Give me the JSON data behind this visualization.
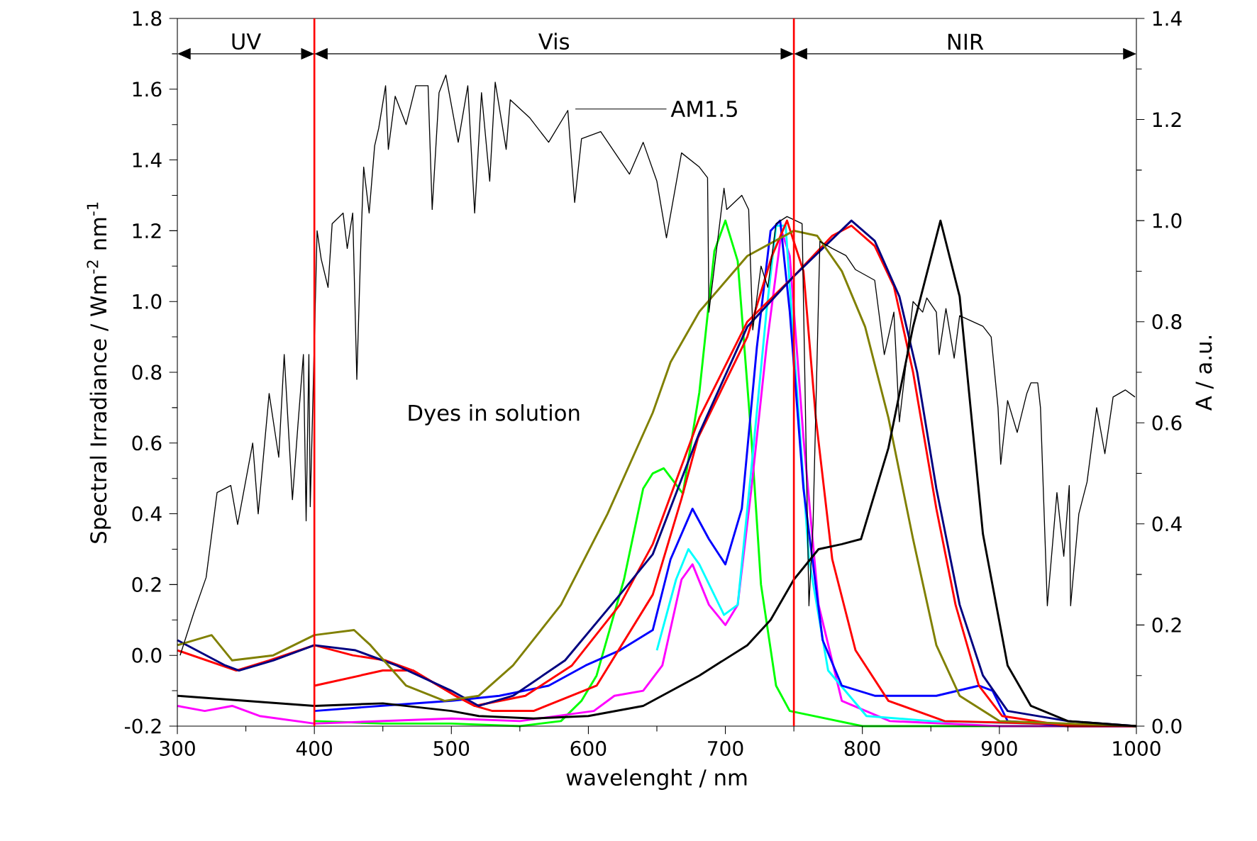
{
  "chart_data": {
    "type": "line",
    "xlabel": "wavelenght / nm",
    "ylabel": "Spectral Irradiance / Wm$^{-2}$ nm$^{-1}$",
    "y2label": "A / a.u.",
    "xlim": [
      300,
      1000
    ],
    "xticks": [
      300,
      400,
      500,
      600,
      700,
      800,
      900,
      1000
    ],
    "ylim": [
      -0.2,
      1.8
    ],
    "yticks": [
      -0.2,
      {
        "value": 0,
        "label": "0.0"
      },
      0.2,
      0.4,
      0.6,
      0.8,
      {
        "value": 1,
        "label": "1.0"
      },
      1.2,
      1.4,
      1.6,
      1.8
    ],
    "y2lim": [
      0,
      1.4
    ],
    "y2ticks": [
      {
        "value": 0,
        "label": "0.0"
      },
      0.2,
      0.4,
      0.6,
      0.8,
      {
        "value": 1,
        "label": "1.0"
      },
      1.2,
      1.4
    ],
    "annotations": [
      "UV",
      "Vis",
      "NIR",
      "Dyes in solution"
    ],
    "ref_lines": [
      {
        "axis": "x",
        "value": 400,
        "color": "#ff0000"
      },
      {
        "axis": "x",
        "value": 750,
        "color": "#ff0000"
      }
    ],
    "series": [
      {
        "name": "AM1.5",
        "color": "#000000",
        "x": [
          302,
          312,
          321,
          329,
          339,
          344,
          355,
          359,
          367,
          374,
          378,
          384,
          388,
          392,
          394,
          396,
          397,
          402,
          405,
          410,
          413,
          421,
          424,
          428,
          431,
          434,
          436,
          440,
          444,
          447,
          452,
          454,
          459,
          467,
          474,
          483,
          486,
          491,
          496,
          505,
          512,
          517,
          522,
          528,
          532,
          540,
          543,
          557,
          571,
          585,
          590,
          595,
          609,
          630,
          640,
          650,
          657,
          668,
          681,
          687,
          688,
          699,
          701,
          712,
          717,
          720,
          726,
          731,
          737,
          745,
          756,
          761,
          764,
          769,
          778,
          788,
          795,
          809,
          816,
          823,
          827,
          837,
          844,
          847,
          854,
          856,
          861,
          867,
          871,
          888,
          894,
          899,
          901,
          906,
          913,
          920,
          923,
          928,
          930,
          935,
          942,
          947,
          951,
          952,
          958,
          964,
          971,
          977,
          983,
          992,
          999
        ],
        "values": [
          0.0,
          0.12,
          0.22,
          0.46,
          0.48,
          0.37,
          0.6,
          0.4,
          0.74,
          0.56,
          0.85,
          0.44,
          0.65,
          0.85,
          0.38,
          0.85,
          0.42,
          1.2,
          1.12,
          1.04,
          1.22,
          1.25,
          1.15,
          1.25,
          0.78,
          1.17,
          1.38,
          1.25,
          1.44,
          1.49,
          1.61,
          1.43,
          1.58,
          1.5,
          1.61,
          1.61,
          1.26,
          1.59,
          1.64,
          1.45,
          1.61,
          1.25,
          1.59,
          1.34,
          1.62,
          1.43,
          1.57,
          1.52,
          1.45,
          1.54,
          1.28,
          1.46,
          1.48,
          1.36,
          1.45,
          1.34,
          1.18,
          1.42,
          1.38,
          1.35,
          0.97,
          1.32,
          1.26,
          1.3,
          1.26,
          0.92,
          1.1,
          1.04,
          1.22,
          1.24,
          1.22,
          0.14,
          0.37,
          1.17,
          1.15,
          1.13,
          1.09,
          1.06,
          0.85,
          0.97,
          0.66,
          1.0,
          0.97,
          1.01,
          0.97,
          0.85,
          0.98,
          0.84,
          0.96,
          0.93,
          0.9,
          0.7,
          0.54,
          0.72,
          0.63,
          0.74,
          0.77,
          0.77,
          0.7,
          0.14,
          0.46,
          0.28,
          0.48,
          0.14,
          0.4,
          0.49,
          0.7,
          0.57,
          0.73,
          0.75,
          0.73
        ]
      },
      {
        "color": "#00ff00",
        "axis": "y2",
        "x": [
          400,
          450,
          500,
          550,
          580,
          595,
          606,
          626,
          640,
          647,
          655,
          669,
          681,
          692,
          700,
          709,
          719,
          726,
          737,
          747,
          800,
          900,
          1000
        ],
        "values": [
          0.01,
          0.005,
          0.005,
          0.0,
          0.01,
          0.05,
          0.1,
          0.29,
          0.47,
          0.5,
          0.51,
          0.46,
          0.66,
          0.94,
          1.0,
          0.92,
          0.57,
          0.28,
          0.08,
          0.03,
          0.0,
          0.0,
          0.0
        ]
      },
      {
        "color": "#ff00ff",
        "axis": "y2",
        "x": [
          300,
          320,
          340,
          360,
          400,
          450,
          500,
          550,
          604,
          619,
          640,
          654,
          668,
          676,
          688,
          700,
          709,
          719,
          730,
          741,
          747,
          757,
          768,
          785,
          820,
          900,
          1000
        ],
        "values": [
          0.04,
          0.03,
          0.04,
          0.02,
          0.005,
          0.01,
          0.015,
          0.01,
          0.03,
          0.06,
          0.07,
          0.12,
          0.29,
          0.32,
          0.24,
          0.2,
          0.24,
          0.47,
          0.75,
          0.98,
          0.93,
          0.57,
          0.24,
          0.05,
          0.01,
          0.0,
          0.0
        ]
      },
      {
        "color": "#00ffff",
        "axis": "y2",
        "x": [
          650,
          664,
          673,
          681,
          699,
          709,
          719,
          730,
          737,
          744,
          750,
          761,
          775,
          803,
          850,
          1000
        ],
        "values": [
          0.15,
          0.29,
          0.35,
          0.32,
          0.22,
          0.24,
          0.51,
          0.82,
          0.99,
          0.99,
          0.75,
          0.33,
          0.11,
          0.02,
          0.01,
          0.0
        ]
      },
      {
        "color": "#0000ff",
        "axis": "y2",
        "x": [
          400,
          448,
          500,
          535,
          571,
          598,
          623,
          647,
          660,
          676,
          688,
          700,
          712,
          723,
          733,
          740,
          747,
          757,
          771,
          785,
          809,
          854,
          885,
          895,
          906,
          950,
          1000
        ],
        "values": [
          0.03,
          0.04,
          0.05,
          0.06,
          0.08,
          0.12,
          0.15,
          0.19,
          0.33,
          0.43,
          0.37,
          0.32,
          0.43,
          0.75,
          0.98,
          1.0,
          0.82,
          0.47,
          0.17,
          0.08,
          0.06,
          0.06,
          0.08,
          0.07,
          0.01,
          0.0,
          0.0
        ]
      },
      {
        "color": "#ff0000",
        "axis": "y2",
        "x": [
          400,
          450,
          472,
          503,
          517,
          530,
          560,
          606,
          647,
          668,
          680,
          716,
          734,
          745,
          757,
          766,
          778,
          795,
          819,
          860,
          1000
        ],
        "values": [
          0.08,
          0.11,
          0.11,
          0.06,
          0.04,
          0.03,
          0.03,
          0.08,
          0.26,
          0.45,
          0.57,
          0.77,
          0.93,
          1.0,
          0.9,
          0.61,
          0.33,
          0.15,
          0.05,
          0.01,
          0.0
        ]
      },
      {
        "color": "#ff0000",
        "axis": "y2",
        "x": [
          300,
          343,
          367,
          400,
          428,
          452,
          472,
          503,
          517,
          554,
          588,
          623,
          647,
          681,
          716,
          750,
          778,
          792,
          809,
          823,
          837,
          854,
          868,
          885,
          902,
          950,
          1000
        ],
        "values": [
          0.15,
          0.11,
          0.13,
          0.16,
          0.14,
          0.13,
          0.11,
          0.06,
          0.04,
          0.06,
          0.12,
          0.24,
          0.36,
          0.61,
          0.8,
          0.89,
          0.97,
          0.99,
          0.95,
          0.87,
          0.7,
          0.43,
          0.24,
          0.08,
          0.02,
          0.0,
          0.0
        ]
      },
      {
        "color": "#000080",
        "axis": "y2",
        "x": [
          300,
          335,
          345,
          370,
          400,
          430,
          460,
          500,
          520,
          545,
          583,
          623,
          647,
          671,
          681,
          716,
          750,
          792,
          809,
          827,
          840,
          854,
          871,
          888,
          906,
          950,
          1000
        ],
        "values": [
          0.17,
          0.12,
          0.11,
          0.13,
          0.16,
          0.15,
          0.12,
          0.07,
          0.04,
          0.06,
          0.13,
          0.26,
          0.34,
          0.51,
          0.58,
          0.79,
          0.89,
          1.0,
          0.96,
          0.85,
          0.7,
          0.47,
          0.24,
          0.1,
          0.03,
          0.01,
          0.0
        ]
      },
      {
        "color": "#808000",
        "axis": "y2",
        "x": [
          300,
          325,
          340,
          370,
          400,
          429,
          441,
          467,
          495,
          520,
          545,
          580,
          614,
          647,
          660,
          681,
          716,
          750,
          767,
          785,
          802,
          819,
          837,
          854,
          871,
          900,
          1000
        ],
        "values": [
          0.16,
          0.18,
          0.13,
          0.14,
          0.18,
          0.19,
          0.16,
          0.08,
          0.05,
          0.06,
          0.12,
          0.24,
          0.42,
          0.62,
          0.72,
          0.82,
          0.93,
          0.98,
          0.97,
          0.9,
          0.79,
          0.61,
          0.37,
          0.16,
          0.06,
          0.01,
          0.0
        ]
      },
      {
        "color": "#000000",
        "axis": "y2",
        "x": [
          300,
          350,
          400,
          450,
          500,
          520,
          560,
          600,
          640,
          681,
          716,
          733,
          750,
          768,
          785,
          799,
          819,
          837,
          857,
          871,
          888,
          906,
          923,
          950,
          1000
        ],
        "values": [
          0.06,
          0.05,
          0.04,
          0.045,
          0.03,
          0.02,
          0.015,
          0.02,
          0.04,
          0.1,
          0.16,
          0.21,
          0.29,
          0.35,
          0.36,
          0.37,
          0.55,
          0.79,
          1.0,
          0.85,
          0.38,
          0.12,
          0.04,
          0.01,
          0.0
        ]
      }
    ]
  }
}
